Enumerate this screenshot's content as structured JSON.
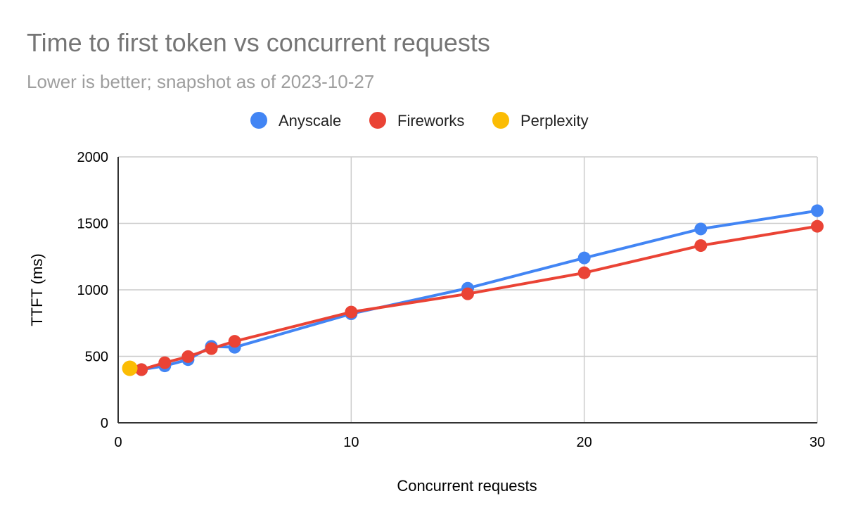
{
  "chart_data": {
    "type": "scatter",
    "title": "Time to first token vs concurrent requests",
    "subtitle": "Lower is better; snapshot as of 2023-10-27",
    "xlabel": "Concurrent requests",
    "ylabel": "TTFT (ms)",
    "xlim": [
      0,
      30
    ],
    "ylim": [
      0,
      2000
    ],
    "x_ticks": [
      0,
      10,
      20,
      30
    ],
    "y_ticks": [
      0,
      500,
      1000,
      1500,
      2000
    ],
    "grid": true,
    "legend_position": "top",
    "series": [
      {
        "name": "Anyscale",
        "color": "#4285f4",
        "lines": true,
        "points": [
          [
            1,
            400
          ],
          [
            2,
            428
          ],
          [
            3,
            475
          ],
          [
            4,
            575
          ],
          [
            5,
            568
          ],
          [
            10,
            820
          ],
          [
            15,
            1012
          ],
          [
            20,
            1240
          ],
          [
            25,
            1458
          ],
          [
            30,
            1595
          ]
        ]
      },
      {
        "name": "Fireworks",
        "color": "#ea4335",
        "lines": true,
        "points": [
          [
            1,
            400
          ],
          [
            2,
            452
          ],
          [
            3,
            498
          ],
          [
            4,
            558
          ],
          [
            5,
            613
          ],
          [
            10,
            833
          ],
          [
            15,
            970
          ],
          [
            20,
            1128
          ],
          [
            25,
            1333
          ],
          [
            30,
            1478
          ]
        ]
      },
      {
        "name": "Perplexity",
        "color": "#fbbc04",
        "lines": false,
        "points": [
          [
            0.5,
            410
          ]
        ]
      }
    ]
  }
}
